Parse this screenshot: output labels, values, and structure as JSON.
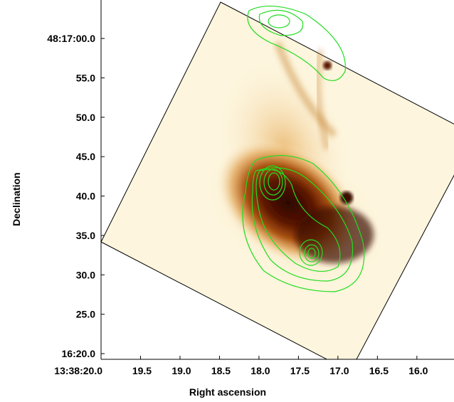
{
  "chart_data": {
    "type": "image",
    "xlabel": "Right ascension",
    "ylabel": "Declination",
    "xlim": [
      20.0,
      15.53
    ],
    "ylim": [
      19.28,
      64.7
    ],
    "xticks": [
      {
        "value": 20.0,
        "label": "13:38:20.0"
      },
      {
        "value": 19.5,
        "label": "19.5"
      },
      {
        "value": 19.0,
        "label": "19.0"
      },
      {
        "value": 18.5,
        "label": "18.5"
      },
      {
        "value": 18.0,
        "label": "18.0"
      },
      {
        "value": 17.5,
        "label": "17.5"
      },
      {
        "value": 17.0,
        "label": "17.0"
      },
      {
        "value": 16.5,
        "label": "16.5"
      },
      {
        "value": 16.0,
        "label": "16.0"
      }
    ],
    "yticks": [
      {
        "value": 60,
        "label": "48:17:00.0"
      },
      {
        "value": 55,
        "label": "55.0"
      },
      {
        "value": 50,
        "label": "50.0"
      },
      {
        "value": 45,
        "label": "45.0"
      },
      {
        "value": 40,
        "label": "40.0"
      },
      {
        "value": 35,
        "label": "35.0"
      },
      {
        "value": 30,
        "label": "30.0"
      },
      {
        "value": 25,
        "label": "25.0"
      },
      {
        "value": 20,
        "label": "16:20.0"
      }
    ]
  }
}
